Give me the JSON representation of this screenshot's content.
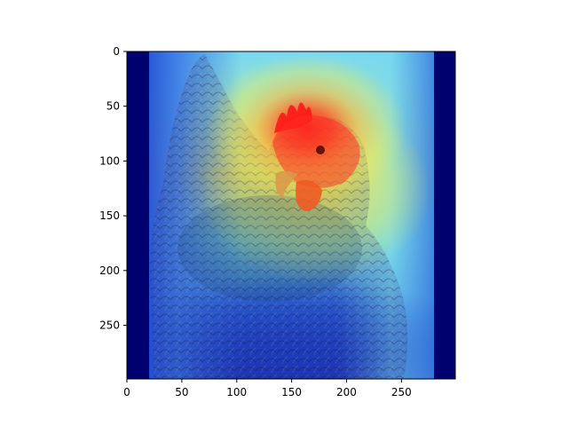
{
  "chart_data": {
    "type": "heatmap",
    "title": "",
    "xlabel": "",
    "ylabel": "",
    "xlim": [
      0,
      299
    ],
    "ylim": [
      299,
      0
    ],
    "x_ticks": [
      0,
      50,
      100,
      150,
      200,
      250
    ],
    "y_ticks": [
      0,
      50,
      100,
      150,
      200,
      250
    ],
    "colormap": "jet",
    "overlay_subject": "hen-photo",
    "heat_peak": {
      "x": 150,
      "y": 70,
      "level": 1.0
    },
    "heat_regions": [
      {
        "description": "red hot spot",
        "x": 150,
        "y": 75,
        "level": 1.0
      },
      {
        "description": "yellow band",
        "x": 180,
        "y": 145,
        "level": 0.7
      },
      {
        "description": "cyan lower",
        "x": 150,
        "y": 215,
        "level": 0.45
      },
      {
        "description": "blue bottom",
        "x": 150,
        "y": 280,
        "level": 0.15
      }
    ],
    "dark_padding_columns": [
      [
        0,
        20
      ],
      [
        278,
        299
      ]
    ],
    "colors": {
      "dark_blue": "#00006e",
      "blue": "#1f3ad8",
      "cyan": "#37d9e8",
      "yellow": "#f3e64a",
      "red": "#ff2424"
    }
  }
}
